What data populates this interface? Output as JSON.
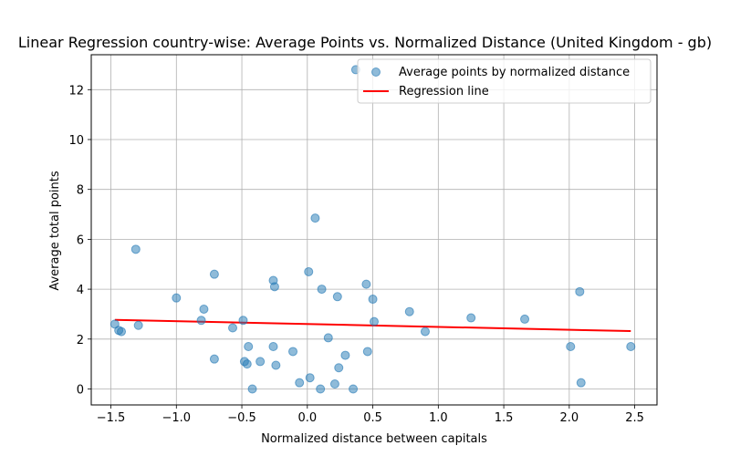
{
  "chart_data": {
    "type": "scatter",
    "title": "Linear Regression country-wise: Average Points vs. Normalized Distance (United Kingdom - gb)",
    "xlabel": "Normalized distance between capitals",
    "ylabel": "Average total points",
    "xlim": [
      -1.65,
      2.67
    ],
    "ylim": [
      -0.64,
      13.4
    ],
    "xticks": [
      -1.5,
      -1.0,
      -0.5,
      0.0,
      0.5,
      1.0,
      1.5,
      2.0,
      2.5
    ],
    "xtick_labels": [
      "−1.5",
      "−1.0",
      "−0.5",
      "0.0",
      "0.5",
      "1.0",
      "1.5",
      "2.0",
      "2.5"
    ],
    "yticks": [
      0,
      2,
      4,
      6,
      8,
      10,
      12
    ],
    "ytick_labels": [
      "0",
      "2",
      "4",
      "6",
      "8",
      "10",
      "12"
    ],
    "grid": true,
    "legend_position": "top-right",
    "series": [
      {
        "name": "Average points by normalized distance",
        "kind": "scatter",
        "color": "#1f77b4",
        "alpha": 0.5,
        "x": [
          -1.47,
          -1.44,
          -1.42,
          -1.31,
          -1.29,
          -1.0,
          -0.81,
          -0.79,
          -0.71,
          -0.71,
          -0.57,
          -0.49,
          -0.48,
          -0.46,
          -0.45,
          -0.42,
          -0.36,
          -0.26,
          -0.26,
          -0.25,
          -0.24,
          -0.11,
          -0.06,
          0.01,
          0.02,
          0.06,
          0.1,
          0.11,
          0.16,
          0.21,
          0.23,
          0.24,
          0.29,
          0.35,
          0.37,
          0.45,
          0.46,
          0.5,
          0.51,
          0.78,
          0.9,
          1.25,
          1.66,
          2.01,
          2.08,
          2.09,
          2.47
        ],
        "y": [
          2.6,
          2.35,
          2.3,
          5.6,
          2.55,
          3.65,
          2.75,
          3.2,
          4.6,
          1.2,
          2.45,
          2.75,
          1.1,
          1.0,
          1.7,
          0.0,
          1.1,
          4.35,
          1.7,
          4.1,
          0.95,
          1.5,
          0.25,
          4.7,
          0.45,
          6.85,
          0.0,
          4.0,
          2.05,
          0.2,
          3.7,
          0.85,
          1.35,
          0.0,
          12.8,
          4.2,
          1.5,
          3.6,
          2.7,
          3.1,
          2.3,
          2.85,
          2.8,
          1.7,
          3.9,
          0.25,
          1.7
        ]
      },
      {
        "name": "Regression line",
        "kind": "line",
        "color": "#ff0000",
        "x": [
          -1.47,
          2.47
        ],
        "y": [
          2.77,
          2.32
        ]
      }
    ]
  }
}
